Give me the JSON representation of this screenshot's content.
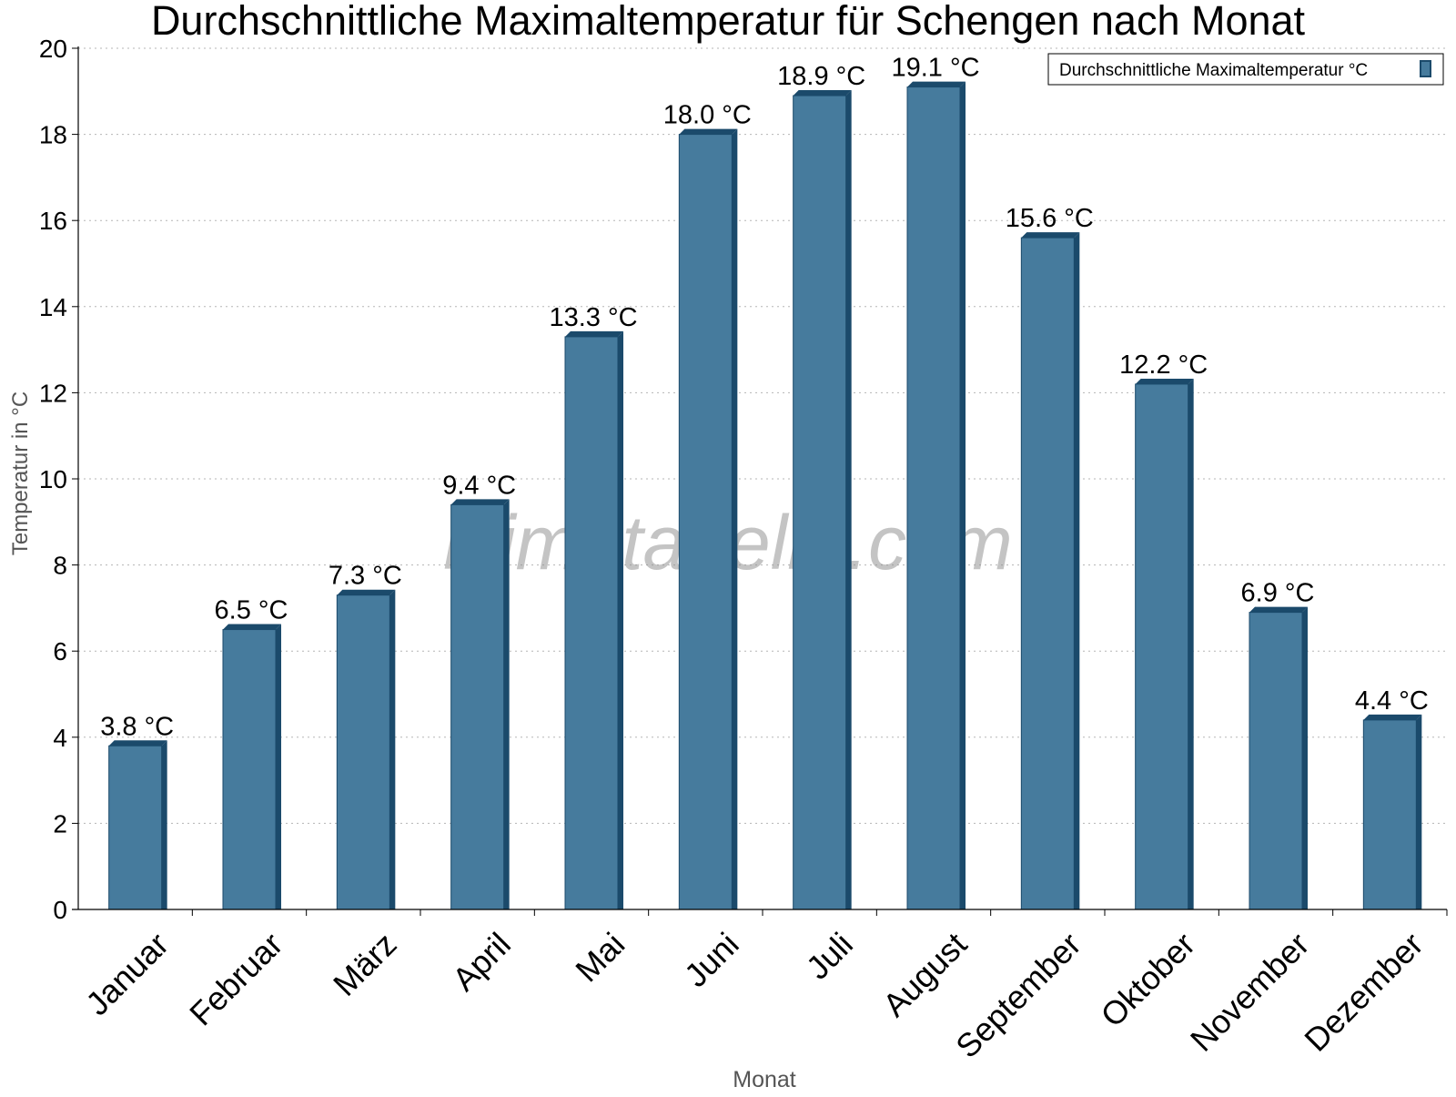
{
  "chart_data": {
    "type": "bar",
    "title": "Durchschnittliche Maximaltemperatur für Schengen nach Monat",
    "xlabel": "Monat",
    "ylabel": "Temperatur in °C",
    "categories": [
      "Januar",
      "Februar",
      "März",
      "April",
      "Mai",
      "Juni",
      "Juli",
      "August",
      "September",
      "Oktober",
      "November",
      "Dezember"
    ],
    "series": [
      {
        "name": "Durchschnittliche Maximaltemperatur °C",
        "values": [
          3.8,
          6.5,
          7.3,
          9.4,
          13.3,
          18.0,
          18.9,
          19.1,
          15.6,
          12.2,
          6.9,
          4.4
        ]
      }
    ],
    "value_labels": [
      "3.8 °C",
      "6.5 °C",
      "7.3 °C",
      "9.4 °C",
      "13.3 °C",
      "18.0 °C",
      "18.9 °C",
      "19.1 °C",
      "15.6 °C",
      "12.2 °C",
      "6.9 °C",
      "4.4 °C"
    ],
    "ylim": [
      0,
      20
    ],
    "yticks": [
      0,
      2,
      4,
      6,
      8,
      10,
      12,
      14,
      16,
      18,
      20
    ],
    "grid": true,
    "legend_position": "top-right",
    "bar_color": "#467b9d",
    "bar_edge_color": "#1b4a6b",
    "watermark": "klimatabelle.com"
  }
}
